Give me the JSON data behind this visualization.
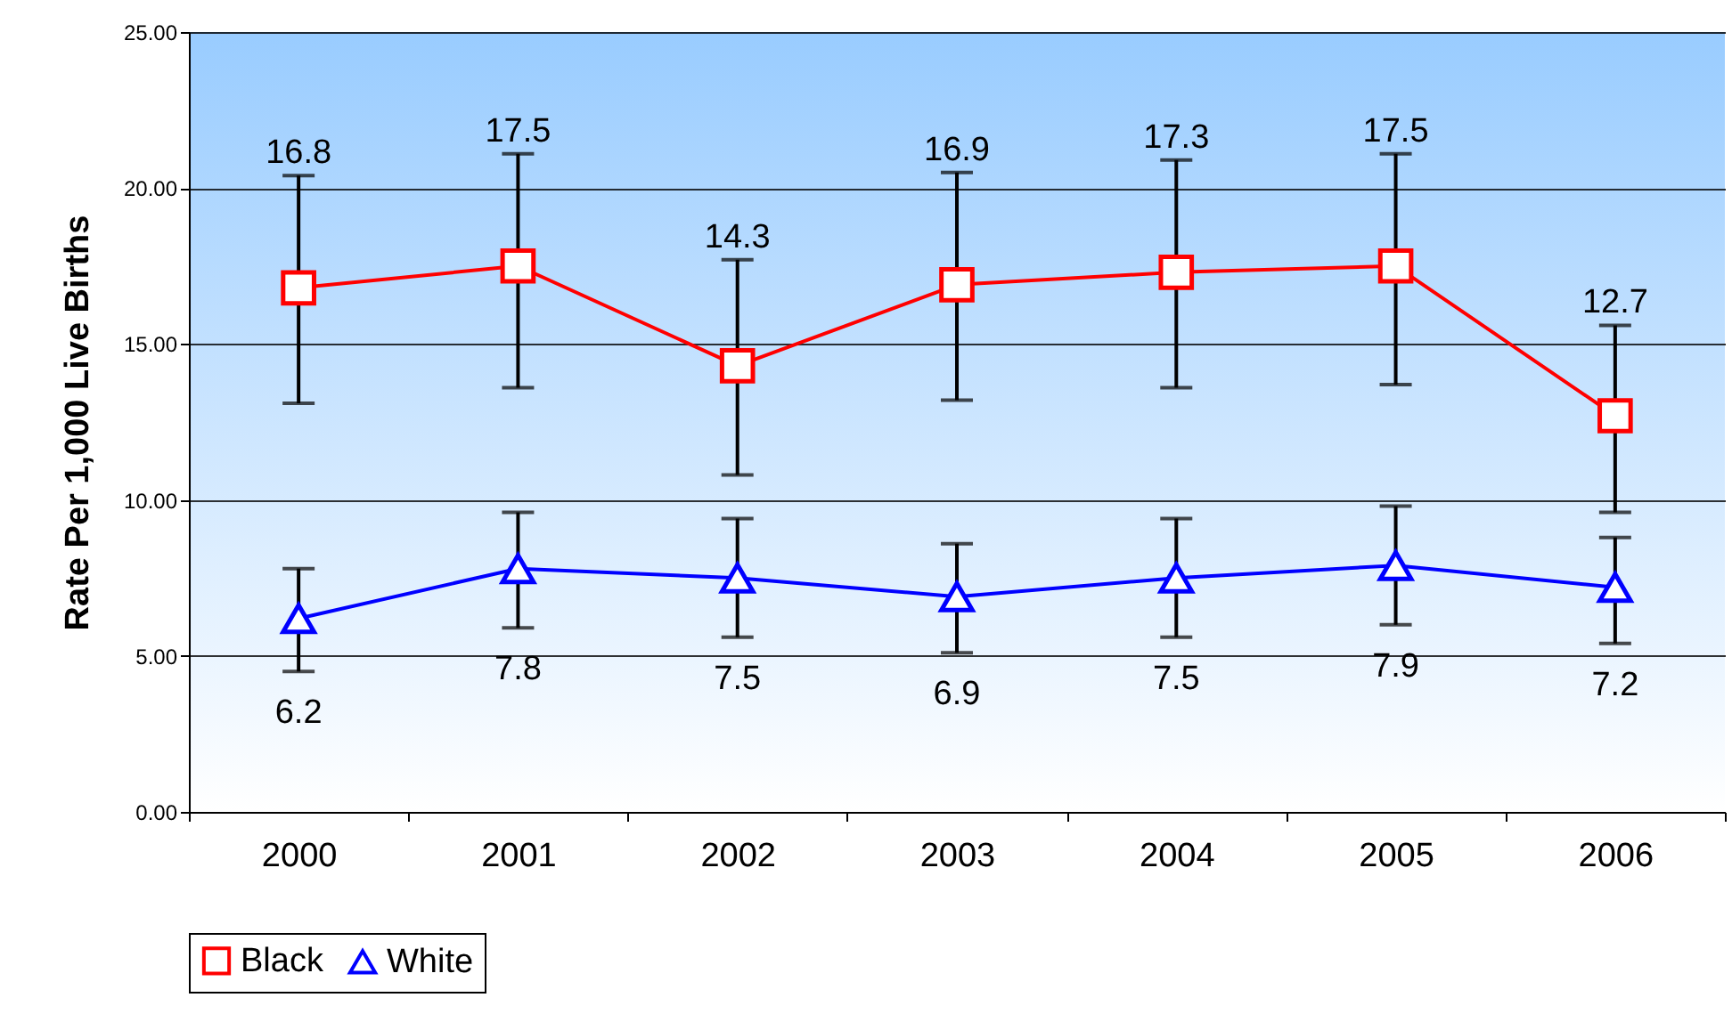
{
  "chart_data": {
    "type": "line",
    "ylabel": "Rate Per 1,000 Live Births",
    "categories": [
      "2000",
      "2001",
      "2002",
      "2003",
      "2004",
      "2005",
      "2006"
    ],
    "series": [
      {
        "name": "Black",
        "color": "#ff0000",
        "marker": "square",
        "values": [
          16.8,
          17.5,
          14.3,
          16.9,
          17.3,
          17.5,
          12.7
        ],
        "errors": [
          [
            13.1,
            20.4
          ],
          [
            13.6,
            21.1
          ],
          [
            10.8,
            17.7
          ],
          [
            13.2,
            20.5
          ],
          [
            13.6,
            20.9
          ],
          [
            13.7,
            21.1
          ],
          [
            9.6,
            15.6
          ]
        ]
      },
      {
        "name": "White",
        "color": "#0000ff",
        "marker": "triangle",
        "values": [
          6.2,
          7.8,
          7.5,
          6.9,
          7.5,
          7.9,
          7.2
        ],
        "errors": [
          [
            4.5,
            7.8
          ],
          [
            5.9,
            9.6
          ],
          [
            5.6,
            9.4
          ],
          [
            5.1,
            8.6
          ],
          [
            5.6,
            9.4
          ],
          [
            6.0,
            9.8
          ],
          [
            5.4,
            8.8
          ]
        ]
      }
    ],
    "ylim": [
      0,
      25
    ],
    "yticks": [
      {
        "value": 0,
        "label": "0.00"
      },
      {
        "value": 5,
        "label": "5.00"
      },
      {
        "value": 10,
        "label": "10.00"
      },
      {
        "value": 15,
        "label": "15.00"
      },
      {
        "value": 20,
        "label": "20.00"
      },
      {
        "value": 25,
        "label": "25.00"
      }
    ],
    "grid": "y",
    "legend": "bottom",
    "data_labels": true,
    "line_style": "solid"
  }
}
